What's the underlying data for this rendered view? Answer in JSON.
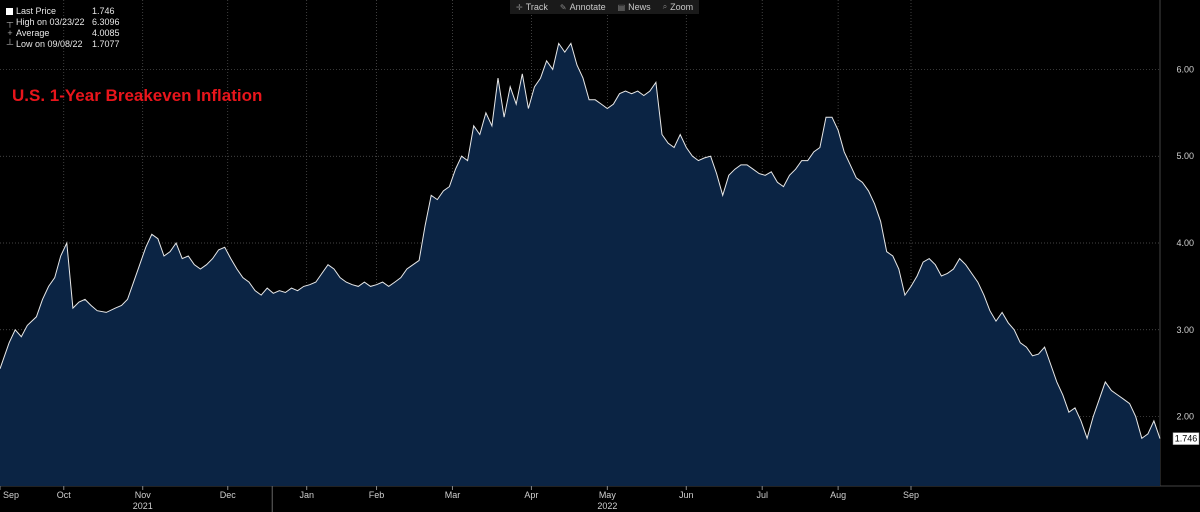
{
  "toolbar": {
    "track": "Track",
    "annotate": "Annotate",
    "news": "News",
    "zoom": "Zoom"
  },
  "legend": {
    "last_price_label": "Last Price",
    "last_price_value": "1.746",
    "high_label": "High on 03/23/22",
    "high_value": "6.3096",
    "average_label": "Average",
    "average_value": "4.0085",
    "low_label": "Low on 09/08/22",
    "low_value": "1.7077"
  },
  "colors": {
    "fill": "#0b2444",
    "line": "#e8e8e8",
    "title": "#e8151b",
    "grid": "#5a5a5a"
  },
  "chart_data": {
    "type": "area",
    "title": "U.S. 1-Year Breakeven Inflation",
    "last_value_label": "1.746",
    "ylim": [
      1.2,
      6.8
    ],
    "y_ticks": [
      2.0,
      3.0,
      4.0,
      5.0,
      6.0
    ],
    "y_tick_labels": [
      "2.00",
      "3.00",
      "4.00",
      "5.00",
      "6.00"
    ],
    "grid": true,
    "month_labels": [
      "Sep",
      "Oct",
      "Nov",
      "Dec",
      "Jan",
      "Feb",
      "Mar",
      "Apr",
      "May",
      "Jun",
      "Jul",
      "Aug",
      "Sep"
    ],
    "month_index": [
      0,
      21,
      47,
      75,
      101,
      124,
      149,
      175,
      200,
      226,
      251,
      276,
      300
    ],
    "year_labels": [
      "2021",
      "2022"
    ],
    "year_label_month": [
      2,
      8
    ],
    "points": [
      [
        0,
        2.55
      ],
      [
        3,
        2.85
      ],
      [
        5,
        3.0
      ],
      [
        7,
        2.92
      ],
      [
        9,
        3.05
      ],
      [
        12,
        3.15
      ],
      [
        14,
        3.35
      ],
      [
        16,
        3.5
      ],
      [
        18,
        3.6
      ],
      [
        20,
        3.85
      ],
      [
        22,
        4.0
      ],
      [
        24,
        3.25
      ],
      [
        26,
        3.32
      ],
      [
        28,
        3.35
      ],
      [
        30,
        3.28
      ],
      [
        32,
        3.22
      ],
      [
        35,
        3.2
      ],
      [
        38,
        3.25
      ],
      [
        40,
        3.28
      ],
      [
        42,
        3.35
      ],
      [
        44,
        3.55
      ],
      [
        46,
        3.75
      ],
      [
        48,
        3.95
      ],
      [
        50,
        4.1
      ],
      [
        52,
        4.05
      ],
      [
        54,
        3.85
      ],
      [
        56,
        3.9
      ],
      [
        58,
        4.0
      ],
      [
        60,
        3.82
      ],
      [
        62,
        3.85
      ],
      [
        64,
        3.75
      ],
      [
        66,
        3.7
      ],
      [
        68,
        3.75
      ],
      [
        70,
        3.82
      ],
      [
        72,
        3.92
      ],
      [
        74,
        3.95
      ],
      [
        76,
        3.82
      ],
      [
        78,
        3.7
      ],
      [
        80,
        3.6
      ],
      [
        82,
        3.55
      ],
      [
        84,
        3.45
      ],
      [
        86,
        3.4
      ],
      [
        88,
        3.48
      ],
      [
        90,
        3.42
      ],
      [
        92,
        3.45
      ],
      [
        94,
        3.43
      ],
      [
        96,
        3.48
      ],
      [
        98,
        3.45
      ],
      [
        100,
        3.5
      ],
      [
        102,
        3.52
      ],
      [
        104,
        3.55
      ],
      [
        106,
        3.65
      ],
      [
        108,
        3.75
      ],
      [
        110,
        3.7
      ],
      [
        112,
        3.6
      ],
      [
        114,
        3.55
      ],
      [
        116,
        3.52
      ],
      [
        118,
        3.5
      ],
      [
        120,
        3.55
      ],
      [
        122,
        3.5
      ],
      [
        124,
        3.52
      ],
      [
        126,
        3.55
      ],
      [
        128,
        3.5
      ],
      [
        130,
        3.55
      ],
      [
        132,
        3.6
      ],
      [
        134,
        3.7
      ],
      [
        136,
        3.75
      ],
      [
        138,
        3.8
      ],
      [
        140,
        4.2
      ],
      [
        142,
        4.55
      ],
      [
        144,
        4.5
      ],
      [
        146,
        4.6
      ],
      [
        148,
        4.65
      ],
      [
        150,
        4.85
      ],
      [
        152,
        5.0
      ],
      [
        154,
        4.95
      ],
      [
        156,
        5.35
      ],
      [
        158,
        5.25
      ],
      [
        160,
        5.5
      ],
      [
        162,
        5.35
      ],
      [
        164,
        5.9
      ],
      [
        166,
        5.45
      ],
      [
        168,
        5.8
      ],
      [
        170,
        5.6
      ],
      [
        172,
        5.95
      ],
      [
        174,
        5.55
      ],
      [
        176,
        5.8
      ],
      [
        178,
        5.9
      ],
      [
        180,
        6.1
      ],
      [
        182,
        6.0
      ],
      [
        184,
        6.3
      ],
      [
        186,
        6.2
      ],
      [
        188,
        6.3
      ],
      [
        190,
        6.05
      ],
      [
        192,
        5.9
      ],
      [
        194,
        5.65
      ],
      [
        196,
        5.65
      ],
      [
        198,
        5.6
      ],
      [
        200,
        5.55
      ],
      [
        202,
        5.6
      ],
      [
        204,
        5.72
      ],
      [
        206,
        5.75
      ],
      [
        208,
        5.72
      ],
      [
        210,
        5.75
      ],
      [
        212,
        5.7
      ],
      [
        214,
        5.75
      ],
      [
        216,
        5.85
      ],
      [
        218,
        5.25
      ],
      [
        220,
        5.15
      ],
      [
        222,
        5.1
      ],
      [
        224,
        5.25
      ],
      [
        226,
        5.1
      ],
      [
        228,
        5.0
      ],
      [
        230,
        4.95
      ],
      [
        232,
        4.98
      ],
      [
        234,
        5.0
      ],
      [
        236,
        4.8
      ],
      [
        238,
        4.55
      ],
      [
        240,
        4.78
      ],
      [
        242,
        4.85
      ],
      [
        244,
        4.9
      ],
      [
        246,
        4.9
      ],
      [
        248,
        4.85
      ],
      [
        250,
        4.8
      ],
      [
        252,
        4.78
      ],
      [
        254,
        4.82
      ],
      [
        256,
        4.7
      ],
      [
        258,
        4.65
      ],
      [
        260,
        4.78
      ],
      [
        262,
        4.85
      ],
      [
        264,
        4.95
      ],
      [
        266,
        4.95
      ],
      [
        268,
        5.05
      ],
      [
        270,
        5.1
      ],
      [
        272,
        5.45
      ],
      [
        274,
        5.45
      ],
      [
        276,
        5.3
      ],
      [
        278,
        5.05
      ],
      [
        280,
        4.9
      ],
      [
        282,
        4.75
      ],
      [
        284,
        4.7
      ],
      [
        286,
        4.6
      ],
      [
        288,
        4.45
      ],
      [
        290,
        4.25
      ],
      [
        292,
        3.9
      ],
      [
        294,
        3.85
      ],
      [
        296,
        3.7
      ],
      [
        298,
        3.4
      ],
      [
        300,
        3.5
      ],
      [
        302,
        3.62
      ],
      [
        304,
        3.78
      ],
      [
        306,
        3.82
      ],
      [
        308,
        3.75
      ],
      [
        310,
        3.62
      ],
      [
        312,
        3.65
      ],
      [
        314,
        3.7
      ],
      [
        316,
        3.82
      ],
      [
        318,
        3.75
      ],
      [
        320,
        3.65
      ],
      [
        322,
        3.55
      ],
      [
        324,
        3.4
      ],
      [
        326,
        3.22
      ],
      [
        328,
        3.1
      ],
      [
        330,
        3.2
      ],
      [
        332,
        3.08
      ],
      [
        334,
        3.0
      ],
      [
        336,
        2.85
      ],
      [
        338,
        2.8
      ],
      [
        340,
        2.7
      ],
      [
        342,
        2.72
      ],
      [
        344,
        2.8
      ],
      [
        346,
        2.6
      ],
      [
        348,
        2.4
      ],
      [
        350,
        2.25
      ],
      [
        352,
        2.05
      ],
      [
        354,
        2.1
      ],
      [
        356,
        1.95
      ],
      [
        358,
        1.75
      ],
      [
        360,
        2.0
      ],
      [
        362,
        2.2
      ],
      [
        364,
        2.4
      ],
      [
        366,
        2.3
      ],
      [
        368,
        2.25
      ],
      [
        370,
        2.2
      ],
      [
        372,
        2.15
      ],
      [
        374,
        2.0
      ],
      [
        376,
        1.75
      ],
      [
        378,
        1.8
      ],
      [
        380,
        1.95
      ],
      [
        382,
        1.746
      ]
    ],
    "x_max": 382
  }
}
